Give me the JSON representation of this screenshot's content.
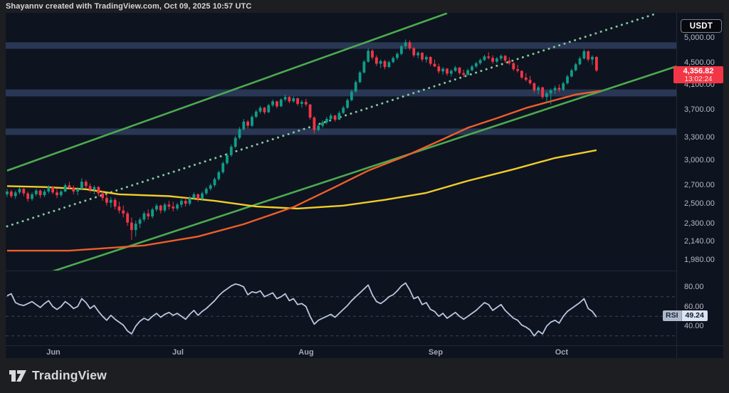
{
  "header": {
    "credit": "Shayannv created with TradingView.com, Oct 09, 2025 10:57 UTC"
  },
  "axis": {
    "currency_button": "USDT",
    "price_labels": [
      {
        "text": "5,000.00",
        "value": 5000
      },
      {
        "text": "4,500.00",
        "value": 4500
      },
      {
        "text": "4,100.00",
        "value": 4100
      },
      {
        "text": "3,700.00",
        "value": 3700
      },
      {
        "text": "3,300.00",
        "value": 3300
      },
      {
        "text": "3,000.00",
        "value": 3000
      },
      {
        "text": "2,700.00",
        "value": 2700
      },
      {
        "text": "2,500.00",
        "value": 2500
      },
      {
        "text": "2,300.00",
        "value": 2300
      },
      {
        "text": "2,140.00",
        "value": 2140
      },
      {
        "text": "1,980.00",
        "value": 1980
      }
    ],
    "time_labels": [
      {
        "label": "Jun",
        "index": 11.15
      },
      {
        "label": "Jul",
        "index": 41.17
      },
      {
        "label": "Aug",
        "index": 72.04
      },
      {
        "label": "Sep",
        "index": 103.26
      },
      {
        "label": "Oct",
        "index": 133.6
      }
    ]
  },
  "price_badge": {
    "value": "4,356.82",
    "countdown": "13:02:24"
  },
  "rsi_badge": {
    "name": "RSI",
    "value": "49.24"
  },
  "footer": {
    "brand": "TradingView"
  },
  "colors": {
    "plot_bg": "#0e1320",
    "page_bg": "#1d1e22",
    "candle_up": "#0f9d87",
    "candle_down": "#f23645",
    "zone": "rgba(86,115,173,0.38)",
    "channel_green": "#4bab4e",
    "channel_dotted": "#86c796",
    "ma_orange": "#ee5f28",
    "ma_yellow": "#f0cd2a",
    "rsi_line": "#b9c6dd",
    "rsi_level": "#3e4456",
    "badge_red": "#f23645"
  },
  "chart_data": {
    "type": "candlestick",
    "quote_currency": "USDT",
    "last_price": 4356.82,
    "y_axis": {
      "scale": "log",
      "tick_values": [
        5000,
        4500,
        4100,
        3700,
        3300,
        3000,
        2700,
        2500,
        2300,
        2140,
        1980
      ]
    },
    "x_axis": {
      "months_shown": [
        "Jun",
        "Jul",
        "Aug",
        "Sep",
        "Oct"
      ]
    },
    "zones": {
      "ranges": [
        [
          4770,
          4900
        ],
        [
          3910,
          4025
        ],
        [
          3330,
          3420
        ]
      ]
    },
    "trendlines": [
      {
        "name": "channel-top",
        "style": "solid",
        "points": [
          [
            0,
            2870
          ],
          [
            106,
            5530
          ]
        ]
      },
      {
        "name": "channel-bottom",
        "style": "solid",
        "points": [
          [
            10,
            1875
          ],
          [
            162,
            4450
          ]
        ]
      },
      {
        "name": "channel-mid",
        "style": "dotted",
        "points": [
          [
            0,
            2275
          ],
          [
            156,
            5510
          ]
        ]
      }
    ],
    "moving_averages": [
      {
        "name": "ma-yellow",
        "points": [
          [
            0,
            2690
          ],
          [
            9,
            2680
          ],
          [
            19,
            2655
          ],
          [
            27,
            2600
          ],
          [
            39,
            2580
          ],
          [
            50,
            2530
          ],
          [
            60,
            2470
          ],
          [
            70,
            2450
          ],
          [
            81,
            2480
          ],
          [
            91,
            2540
          ],
          [
            101,
            2615
          ],
          [
            111,
            2750
          ],
          [
            122,
            2885
          ],
          [
            132,
            3025
          ],
          [
            142,
            3125
          ]
        ]
      },
      {
        "name": "ma-orange",
        "points": [
          [
            0,
            2055
          ],
          [
            15,
            2055
          ],
          [
            33,
            2100
          ],
          [
            46,
            2180
          ],
          [
            57,
            2295
          ],
          [
            69,
            2465
          ],
          [
            79,
            2680
          ],
          [
            87,
            2870
          ],
          [
            96,
            3050
          ],
          [
            105,
            3270
          ],
          [
            111,
            3430
          ],
          [
            118,
            3570
          ],
          [
            125,
            3725
          ],
          [
            132,
            3850
          ],
          [
            137,
            3940
          ],
          [
            143,
            4000
          ]
        ]
      }
    ],
    "candles": [
      [
        2600,
        2660,
        2570,
        2630
      ],
      [
        2630,
        2650,
        2560,
        2580
      ],
      [
        2580,
        2640,
        2550,
        2620
      ],
      [
        2620,
        2680,
        2600,
        2660
      ],
      [
        2660,
        2670,
        2580,
        2610
      ],
      [
        2610,
        2630,
        2520,
        2550
      ],
      [
        2550,
        2620,
        2530,
        2600
      ],
      [
        2600,
        2660,
        2580,
        2640
      ],
      [
        2640,
        2650,
        2560,
        2590
      ],
      [
        2590,
        2650,
        2570,
        2630
      ],
      [
        2630,
        2700,
        2610,
        2680
      ],
      [
        2680,
        2690,
        2600,
        2620
      ],
      [
        2620,
        2660,
        2560,
        2590
      ],
      [
        2590,
        2650,
        2570,
        2630
      ],
      [
        2630,
        2720,
        2620,
        2700
      ],
      [
        2700,
        2740,
        2650,
        2670
      ],
      [
        2670,
        2700,
        2600,
        2630
      ],
      [
        2630,
        2680,
        2590,
        2660
      ],
      [
        2660,
        2780,
        2650,
        2740
      ],
      [
        2740,
        2760,
        2660,
        2690
      ],
      [
        2690,
        2720,
        2620,
        2650
      ],
      [
        2650,
        2700,
        2600,
        2680
      ],
      [
        2680,
        2690,
        2580,
        2610
      ],
      [
        2610,
        2640,
        2530,
        2560
      ],
      [
        2560,
        2600,
        2480,
        2510
      ],
      [
        2510,
        2570,
        2460,
        2540
      ],
      [
        2540,
        2560,
        2440,
        2470
      ],
      [
        2470,
        2520,
        2400,
        2430
      ],
      [
        2430,
        2480,
        2360,
        2400
      ],
      [
        2400,
        2420,
        2280,
        2310
      ],
      [
        2310,
        2360,
        2150,
        2240
      ],
      [
        2240,
        2330,
        2180,
        2300
      ],
      [
        2300,
        2360,
        2260,
        2340
      ],
      [
        2340,
        2420,
        2320,
        2400
      ],
      [
        2400,
        2440,
        2340,
        2370
      ],
      [
        2370,
        2460,
        2350,
        2440
      ],
      [
        2440,
        2500,
        2420,
        2480
      ],
      [
        2480,
        2490,
        2400,
        2430
      ],
      [
        2430,
        2510,
        2410,
        2490
      ],
      [
        2490,
        2530,
        2440,
        2470
      ],
      [
        2470,
        2520,
        2420,
        2450
      ],
      [
        2450,
        2510,
        2430,
        2490
      ],
      [
        2490,
        2550,
        2460,
        2530
      ],
      [
        2530,
        2560,
        2470,
        2500
      ],
      [
        2500,
        2580,
        2480,
        2560
      ],
      [
        2560,
        2620,
        2540,
        2600
      ],
      [
        2600,
        2610,
        2520,
        2550
      ],
      [
        2550,
        2630,
        2530,
        2610
      ],
      [
        2610,
        2680,
        2590,
        2660
      ],
      [
        2660,
        2720,
        2640,
        2700
      ],
      [
        2700,
        2790,
        2680,
        2770
      ],
      [
        2770,
        2870,
        2750,
        2850
      ],
      [
        2850,
        2980,
        2830,
        2960
      ],
      [
        2960,
        3090,
        2940,
        3060
      ],
      [
        3060,
        3200,
        3040,
        3170
      ],
      [
        3170,
        3320,
        3150,
        3290
      ],
      [
        3290,
        3440,
        3270,
        3410
      ],
      [
        3410,
        3560,
        3390,
        3520
      ],
      [
        3520,
        3540,
        3420,
        3460
      ],
      [
        3460,
        3620,
        3440,
        3590
      ],
      [
        3590,
        3700,
        3570,
        3670
      ],
      [
        3670,
        3760,
        3640,
        3730
      ],
      [
        3730,
        3740,
        3630,
        3660
      ],
      [
        3660,
        3790,
        3650,
        3770
      ],
      [
        3770,
        3860,
        3740,
        3830
      ],
      [
        3830,
        3840,
        3720,
        3750
      ],
      [
        3750,
        3880,
        3740,
        3860
      ],
      [
        3860,
        3940,
        3830,
        3900
      ],
      [
        3900,
        3920,
        3800,
        3830
      ],
      [
        3830,
        3910,
        3810,
        3880
      ],
      [
        3880,
        3890,
        3760,
        3790
      ],
      [
        3790,
        3850,
        3730,
        3820
      ],
      [
        3820,
        3870,
        3750,
        3780
      ],
      [
        3780,
        3790,
        3550,
        3580
      ],
      [
        3580,
        3600,
        3350,
        3400
      ],
      [
        3400,
        3490,
        3380,
        3460
      ],
      [
        3460,
        3540,
        3430,
        3510
      ],
      [
        3510,
        3590,
        3480,
        3560
      ],
      [
        3560,
        3640,
        3530,
        3610
      ],
      [
        3610,
        3620,
        3520,
        3550
      ],
      [
        3550,
        3680,
        3540,
        3650
      ],
      [
        3650,
        3760,
        3630,
        3730
      ],
      [
        3730,
        3880,
        3710,
        3850
      ],
      [
        3850,
        4020,
        3830,
        3990
      ],
      [
        3990,
        4180,
        3970,
        4150
      ],
      [
        4150,
        4350,
        4130,
        4320
      ],
      [
        4320,
        4550,
        4300,
        4520
      ],
      [
        4520,
        4780,
        4500,
        4730
      ],
      [
        4730,
        4760,
        4560,
        4600
      ],
      [
        4600,
        4640,
        4440,
        4480
      ],
      [
        4480,
        4560,
        4400,
        4530
      ],
      [
        4530,
        4550,
        4380,
        4420
      ],
      [
        4420,
        4540,
        4400,
        4510
      ],
      [
        4510,
        4620,
        4490,
        4590
      ],
      [
        4590,
        4700,
        4550,
        4670
      ],
      [
        4670,
        4850,
        4640,
        4820
      ],
      [
        4820,
        4957,
        4760,
        4900
      ],
      [
        4900,
        4940,
        4740,
        4780
      ],
      [
        4780,
        4800,
        4600,
        4640
      ],
      [
        4640,
        4720,
        4580,
        4690
      ],
      [
        4690,
        4700,
        4520,
        4560
      ],
      [
        4560,
        4640,
        4500,
        4610
      ],
      [
        4610,
        4620,
        4440,
        4480
      ],
      [
        4480,
        4560,
        4420,
        4430
      ],
      [
        4430,
        4480,
        4300,
        4340
      ],
      [
        4340,
        4420,
        4280,
        4390
      ],
      [
        4390,
        4400,
        4260,
        4300
      ],
      [
        4300,
        4380,
        4250,
        4350
      ],
      [
        4350,
        4440,
        4330,
        4410
      ],
      [
        4410,
        4420,
        4280,
        4310
      ],
      [
        4310,
        4370,
        4240,
        4280
      ],
      [
        4280,
        4390,
        4260,
        4360
      ],
      [
        4360,
        4460,
        4340,
        4430
      ],
      [
        4430,
        4520,
        4400,
        4490
      ],
      [
        4490,
        4580,
        4460,
        4550
      ],
      [
        4550,
        4650,
        4530,
        4620
      ],
      [
        4620,
        4700,
        4560,
        4590
      ],
      [
        4590,
        4640,
        4480,
        4520
      ],
      [
        4520,
        4610,
        4490,
        4580
      ],
      [
        4580,
        4660,
        4540,
        4630
      ],
      [
        4630,
        4650,
        4500,
        4540
      ],
      [
        4540,
        4600,
        4460,
        4490
      ],
      [
        4490,
        4510,
        4350,
        4380
      ],
      [
        4380,
        4460,
        4320,
        4350
      ],
      [
        4350,
        4360,
        4200,
        4230
      ],
      [
        4230,
        4310,
        4160,
        4190
      ],
      [
        4190,
        4260,
        4100,
        4130
      ],
      [
        4130,
        4150,
        3970,
        4010
      ],
      [
        4010,
        4090,
        3950,
        4060
      ],
      [
        4060,
        4070,
        3870,
        3900
      ],
      [
        3900,
        3990,
        3820,
        3960
      ],
      [
        3960,
        4040,
        3780,
        4010
      ],
      [
        4010,
        4090,
        3950,
        4050
      ],
      [
        4050,
        4110,
        3980,
        4020
      ],
      [
        4020,
        4160,
        4000,
        4130
      ],
      [
        4130,
        4280,
        4110,
        4250
      ],
      [
        4250,
        4390,
        4230,
        4360
      ],
      [
        4360,
        4500,
        4340,
        4470
      ],
      [
        4470,
        4620,
        4450,
        4580
      ],
      [
        4580,
        4760,
        4560,
        4720
      ],
      [
        4720,
        4740,
        4520,
        4560
      ],
      [
        4560,
        4640,
        4460,
        4610
      ],
      [
        4610,
        4620,
        4330,
        4357
      ]
    ],
    "rsi": {
      "name": "RSI",
      "last": 49.24,
      "levels_dashed": [
        70,
        50,
        30
      ],
      "axis_labels": [
        {
          "text": "80.00",
          "value": 80
        },
        {
          "text": "60.00",
          "value": 60
        },
        {
          "text": "40.00",
          "value": 40
        }
      ],
      "values": [
        71,
        73,
        64,
        62,
        61,
        63,
        65,
        62,
        59,
        63,
        66,
        60,
        57,
        60,
        65,
        62,
        58,
        60,
        68,
        64,
        58,
        61,
        55,
        50,
        46,
        51,
        47,
        44,
        41,
        35,
        32,
        40,
        45,
        48,
        46,
        50,
        53,
        49,
        52,
        54,
        51,
        53,
        50,
        47,
        52,
        56,
        51,
        55,
        58,
        62,
        66,
        71,
        75,
        78,
        81,
        83,
        82,
        80,
        72,
        75,
        74,
        76,
        70,
        72,
        74,
        68,
        70,
        73,
        66,
        68,
        62,
        63,
        60,
        50,
        42,
        46,
        48,
        50,
        52,
        49,
        53,
        57,
        61,
        66,
        70,
        74,
        78,
        82,
        72,
        65,
        63,
        66,
        70,
        72,
        76,
        81,
        84,
        77,
        68,
        70,
        62,
        64,
        57,
        55,
        50,
        53,
        48,
        51,
        54,
        50,
        47,
        50,
        53,
        56,
        60,
        64,
        62,
        56,
        59,
        62,
        56,
        52,
        48,
        46,
        41,
        39,
        36,
        30,
        35,
        32,
        40,
        44,
        46,
        43,
        50,
        55,
        58,
        61,
        64,
        68,
        58,
        55,
        49.24
      ]
    }
  }
}
